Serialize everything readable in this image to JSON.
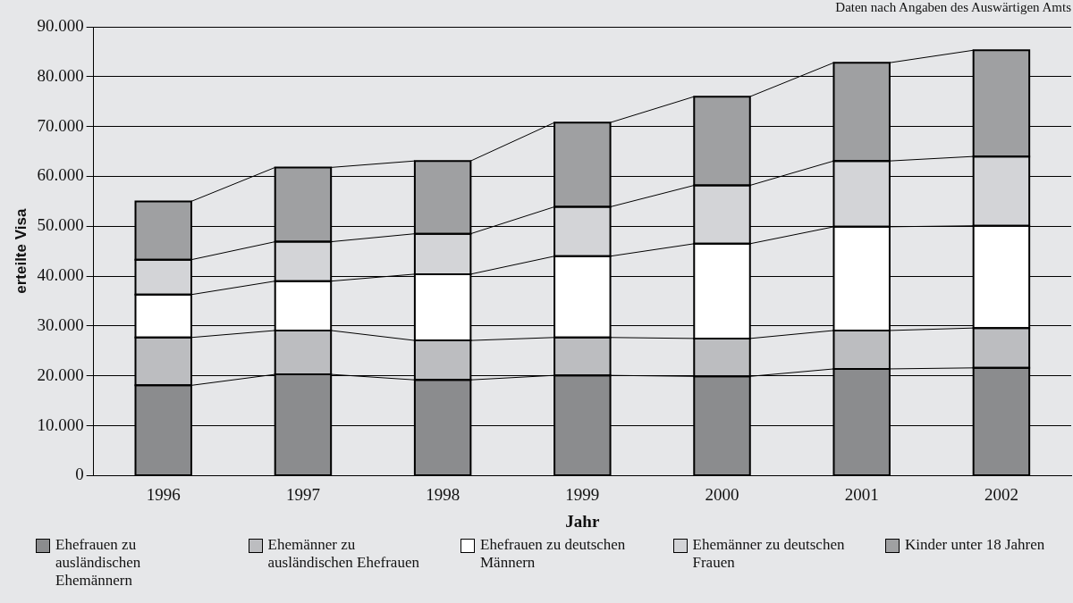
{
  "chart_data": {
    "type": "bar",
    "stacked": true,
    "categories": [
      "1996",
      "1997",
      "1998",
      "1999",
      "2000",
      "2001",
      "2002"
    ],
    "series": [
      {
        "name": "Ehefrauen zu ausländischen Ehemännern",
        "color": "#8b8c8e",
        "values": [
          18100,
          20300,
          19200,
          20100,
          19900,
          21400,
          21600
        ]
      },
      {
        "name": "Ehemänner zu ausländischen Ehefrauen",
        "color": "#bcbdc0",
        "values": [
          9600,
          8800,
          7900,
          7600,
          7600,
          7700,
          8000
        ]
      },
      {
        "name": "Ehefrauen zu deutschen Männern",
        "color": "#ffffff",
        "values": [
          8600,
          9900,
          13300,
          16300,
          19000,
          20800,
          20500
        ]
      },
      {
        "name": "Ehemänner zu deutschen Frauen",
        "color": "#d3d4d7",
        "values": [
          7000,
          7900,
          8100,
          9900,
          11700,
          13200,
          13900
        ]
      },
      {
        "name": "Kinder unter 18 Jahren",
        "color": "#9fa0a2",
        "values": [
          11700,
          14900,
          14600,
          16900,
          17800,
          19700,
          21300
        ]
      }
    ],
    "xlabel": "Jahr",
    "ylabel": "erteilte Visa",
    "ylim": [
      0,
      90000
    ],
    "yticks": [
      0,
      {
        "value": 10000,
        "label": "10.000"
      },
      {
        "value": 20000,
        "label": "20.000"
      },
      {
        "value": 30000,
        "label": "30.000"
      },
      {
        "value": 40000,
        "label": "40.000"
      },
      {
        "value": 50000,
        "label": "50.000"
      },
      {
        "value": 60000,
        "label": "60.000"
      },
      {
        "value": 70000,
        "label": "70.000"
      },
      {
        "value": 80000,
        "label": "80.000"
      },
      {
        "value": 90000,
        "label": "90.000"
      }
    ],
    "grid": "y",
    "legend": "bottom",
    "annotations": [
      "Daten nach Angaben des Auswärtigen Amts"
    ]
  }
}
